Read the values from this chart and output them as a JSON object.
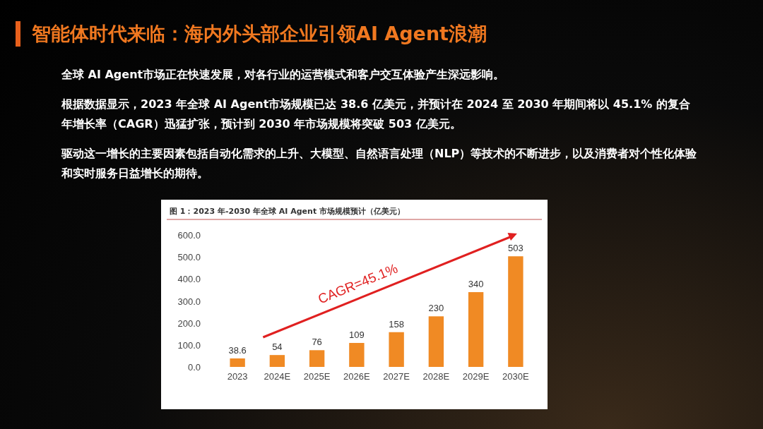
{
  "chart_data": {
    "type": "bar",
    "title": "智能体时代来临：海内外头部企业引领AI Agent浪潮",
    "subtitle": "图 1：2023 年-2030 年全球 AI Agent 市场规模预计（亿美元）",
    "annotations": [
      "全球 AI Agent市场正在快速发展，对各行业的运营模式和客户交互体验产生深远影响。",
      "根据数据显示，2023 年全球 AI Agent市场规模已达 38.6 亿美元，并预计在 2024 至 2030 年期间将以 45.1% 的复合年增长率（CAGR）迅猛扩张，预计到 2030 年市场规模将突破 503 亿美元。",
      "驱动这一增长的主要因素包括自动化需求的上升、大模型、自然语言处理（NLP）等技术的不断进步，以及消费者对个性化体验和实时服务日益增长的期待。",
      "CAGR=45.1%"
    ],
    "categories": [
      "2023",
      "2024E",
      "2025E",
      "2026E",
      "2027E",
      "2028E",
      "2029E",
      "2030E"
    ],
    "values": [
      38.6,
      54,
      76,
      109,
      158,
      230,
      340,
      503
    ],
    "color": "#f08a24",
    "ylim": [
      0,
      600
    ],
    "yticks": [
      {
        "value": 0,
        "label": "0.0"
      },
      {
        "value": 100,
        "label": "100.0"
      },
      {
        "value": 200,
        "label": "200.0"
      },
      {
        "value": 300,
        "label": "300.0"
      },
      {
        "value": 400,
        "label": "400.0"
      },
      {
        "value": 500,
        "label": "500.0"
      },
      {
        "value": 600,
        "label": "600.0"
      }
    ],
    "data_labels": true
  }
}
